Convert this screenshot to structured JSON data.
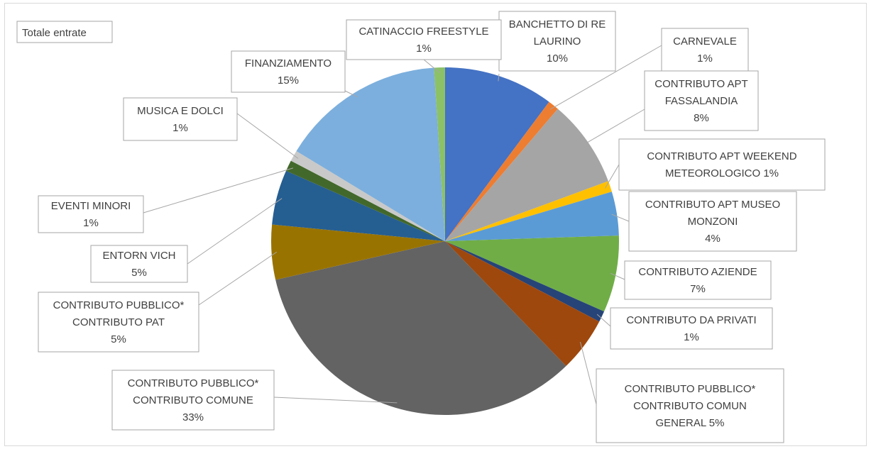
{
  "chart_data": {
    "type": "pie",
    "legend": "Totale entrate",
    "slices": [
      {
        "label": [
          "BANCHETTO DI RE",
          "LAURINO",
          "10%"
        ],
        "value": 10,
        "color": "#4472c4"
      },
      {
        "label": [
          "CARNEVALE",
          "1%"
        ],
        "value": 1,
        "color": "#ed7d31"
      },
      {
        "label": [
          "CONTRIBUTO APT",
          "FASSALANDIA",
          "8%"
        ],
        "value": 8,
        "color": "#a5a5a5"
      },
      {
        "label": [
          "CONTRIBUTO APT WEEKEND",
          "METEOROLOGICO 1%"
        ],
        "value": 1,
        "color": "#ffc000"
      },
      {
        "label": [
          "CONTRIBUTO APT MUSEO",
          "MONZONI",
          "4%"
        ],
        "value": 4,
        "color": "#5b9bd5"
      },
      {
        "label": [
          "CONTRIBUTO AZIENDE",
          "7%"
        ],
        "value": 7,
        "color": "#70ad47"
      },
      {
        "label": [
          "CONTRIBUTO DA PRIVATI",
          "1%"
        ],
        "value": 1,
        "color": "#264478"
      },
      {
        "label": [
          "CONTRIBUTO PUBBLICO*",
          "CONTRIBUTO COMUN",
          "GENERAL 5%"
        ],
        "value": 5,
        "color": "#9e480e"
      },
      {
        "label": [
          "CONTRIBUTO PUBBLICO*",
          "CONTRIBUTO COMUNE",
          "33%"
        ],
        "value": 33,
        "color": "#636363"
      },
      {
        "label": [
          "CONTRIBUTO PUBBLICO*",
          "CONTRIBUTO PAT",
          "5%"
        ],
        "value": 5,
        "color": "#997300"
      },
      {
        "label": [
          "ENTORN VICH",
          "5%"
        ],
        "value": 5,
        "color": "#255e91"
      },
      {
        "label": [
          "EVENTI MINORI",
          "1%"
        ],
        "value": 1,
        "color": "#43682b"
      },
      {
        "label": [
          "MUSICA E DOLCI",
          "1%"
        ],
        "value": 1,
        "color": "#c9c9c9"
      },
      {
        "label": [
          "FINANZIAMENTO",
          "15%"
        ],
        "value": 15,
        "color": "#7cafdd"
      },
      {
        "label": [
          "CATINACCIO FREESTYLE",
          "1%"
        ],
        "value": 1,
        "color": "#8cc168"
      }
    ]
  }
}
